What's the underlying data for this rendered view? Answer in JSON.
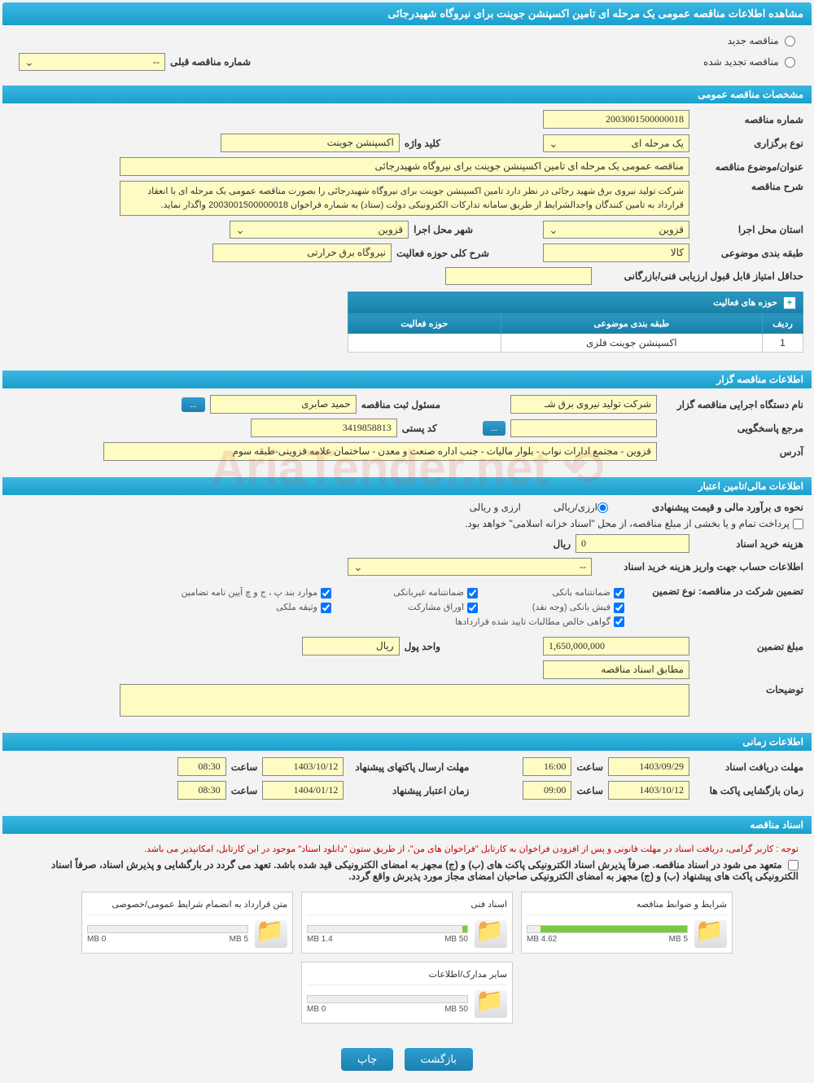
{
  "header": {
    "title": "مشاهده اطلاعات مناقصه عمومی یک مرحله ای تامین اکسپنشن جوینت برای نیروگاه شهیدرجائی"
  },
  "radios": {
    "new_label": "مناقصه جدید",
    "renewed_label": "مناقصه تجدید شده"
  },
  "prev_tender": {
    "label": "شماره مناقصه قبلی",
    "value": "--"
  },
  "sections": {
    "general": "مشخصات مناقصه عمومی",
    "organizer": "اطلاعات مناقصه گزار",
    "financial": "اطلاعات مالی/تامین اعتبار",
    "timing": "اطلاعات زمانی",
    "documents": "اسناد مناقصه"
  },
  "general": {
    "tender_number_label": "شماره مناقصه",
    "tender_number": "2003001500000018",
    "holding_type_label": "نوع برگزاری",
    "holding_type": "یک مرحله ای",
    "keyword_label": "کلید واژه",
    "keyword": "اکسپنشن جوینت",
    "subject_label": "عنوان/موضوع مناقصه",
    "subject": "مناقصه عمومی یک مرحله ای تامین اکسپنشن جوینت برای نیروگاه شهیدرجائی",
    "desc_label": "شرح مناقصه",
    "desc": "شرکت تولید نیروی برق شهید رجائی در نظر دارد تامین اکسپنشن جوینت برای نیروگاه شهیدرجائی را بصورت مناقصه عمومی یک مرحله ای با انعقاد قرارداد به تامین کنندگان واجدالشرایط از طریق سامانه تدارکات الکترونیکی دولت (ستاد) به شماره فراخوان 2003001500000018 واگذار نماید.",
    "province_label": "استان محل اجرا",
    "province": "قزوین",
    "city_label": "شهر محل اجرا",
    "city": "قزوین",
    "category_label": "طبقه بندی موضوعی",
    "category": "کالا",
    "scope_label": "شرح کلی حوزه فعالیت",
    "scope": "نیروگاه برق حرارتی",
    "min_score_label": "حداقل امتیاز قابل قبول ارزیابی فنی/بازرگانی",
    "min_score": ""
  },
  "activity_table": {
    "title": "حوزه های فعالیت",
    "col_row": "ردیف",
    "col_category": "طبقه بندی موضوعی",
    "col_scope": "حوزه فعالیت",
    "rows": [
      {
        "n": "1",
        "cat": "اکسپنشن جوینت فلزی",
        "scope": ""
      }
    ]
  },
  "organizer": {
    "agency_label": "نام دستگاه اجرایی مناقصه گزار",
    "agency": "شرکت تولید نیروی برق شـ",
    "reg_officer_label": "مسئول ثبت مناقصه",
    "reg_officer": "حمید صابری",
    "respond_label": "مرجع پاسخگویی",
    "respond": "",
    "postal_label": "کد پستی",
    "postal": "3419858813",
    "address_label": "آدرس",
    "address": "قزوین - مجتمع ادارات نواب - بلوار مالیات - جنب اداره صنعت و معدن - ساختمان علامه قزوینی-طبقه سوم"
  },
  "financial": {
    "est_label": "نحوه ی برآورد مالی و قیمت پیشنهادی",
    "est_radio": "ارزی/ریالی",
    "treasury_note": "پرداخت تمام و یا بخشی از مبلغ مناقصه، از محل \"اسناد خزانه اسلامی\" خواهد بود.",
    "doc_fee_label": "هزینه خرید اسناد",
    "doc_fee": "0",
    "doc_fee_unit": "ریال",
    "deposit_info_label": "اطلاعات حساب جهت واریز هزینه خرید اسناد",
    "deposit_info": "--",
    "guarantee_label": "تضمین شرکت در مناقصه:   نوع تضمین",
    "cb1": "ضمانتنامه بانکی",
    "cb2": "ضمانتنامه غیربانکی",
    "cb3": "موارد بند پ ، ج و چ آیین نامه تضامین",
    "cb4": "فیش بانکی (وجه نقد)",
    "cb5": "اوراق مشارکت",
    "cb6": "وثیقه ملکی",
    "cb7": "گواهی خالص مطالبات تایید شده قراردادها",
    "amount_label": "مبلغ تضمین",
    "amount": "1,650,000,000",
    "unit_label": "واحد پول",
    "unit": "ریال",
    "per_docs_label": "مطابق اسناد مناقصه",
    "notes_label": "توضیحات"
  },
  "timing": {
    "doc_deadline_label": "مهلت دریافت اسناد",
    "doc_deadline_date": "1403/09/29",
    "doc_deadline_time_label": "ساعت",
    "doc_deadline_time": "16:00",
    "submit_label": "مهلت ارسال پاکتهای پیشنهاد",
    "submit_date": "1403/10/12",
    "submit_time_label": "ساعت",
    "submit_time": "08:30",
    "open_label": "زمان بازگشایی پاکت ها",
    "open_date": "1403/10/12",
    "open_time_label": "ساعت",
    "open_time": "09:00",
    "valid_label": "زمان اعتبار پیشنهاد",
    "valid_date": "1404/01/12",
    "valid_time_label": "ساعت",
    "valid_time": "08:30"
  },
  "documents": {
    "notice1": "توجه : کاربر گرامی، دریافت اسناد در مهلت قانونی و پس از افزودن فراخوان به کارتابل \"فراخوان های من\"، از طریق ستون \"دانلود اسناد\" موجود در این کارتابل، امکانپذیر می باشد.",
    "notice2": "متعهد می شود در اسناد مناقصه. صرفاً پذیرش اسناد الکترونیکی پاکت های (ب) و (ج) مجهز به امضای الکترونیکی قید شده باشد. تعهد می گردد در بارگشایی و پذیرش اسناد، صرفاً اسناد الکترونیکی پاکت های پیشنهاد (ب) و (ج) مجهز به امضای الکترونیکی صاحبان امضای مجاز مورد پذیرش واقع گردد.",
    "files": [
      {
        "title": "شرایط و ضوابط مناقصه",
        "used": "4.62 MB",
        "total": "5 MB",
        "pct": 92
      },
      {
        "title": "اسناد فنی",
        "used": "1.4 MB",
        "total": "50 MB",
        "pct": 3
      },
      {
        "title": "متن قرارداد به انضمام شرایط عمومی/خصوصی",
        "used": "0 MB",
        "total": "5 MB",
        "pct": 0
      },
      {
        "title": "سایر مدارک/اطلاعات",
        "used": "0 MB",
        "total": "50 MB",
        "pct": 0
      }
    ]
  },
  "buttons": {
    "back": "بازگشت",
    "print": "چاپ",
    "ellipsis": "..."
  },
  "colors": {
    "bar": "#1a9fcc",
    "field_bg": "#fefcc2"
  }
}
